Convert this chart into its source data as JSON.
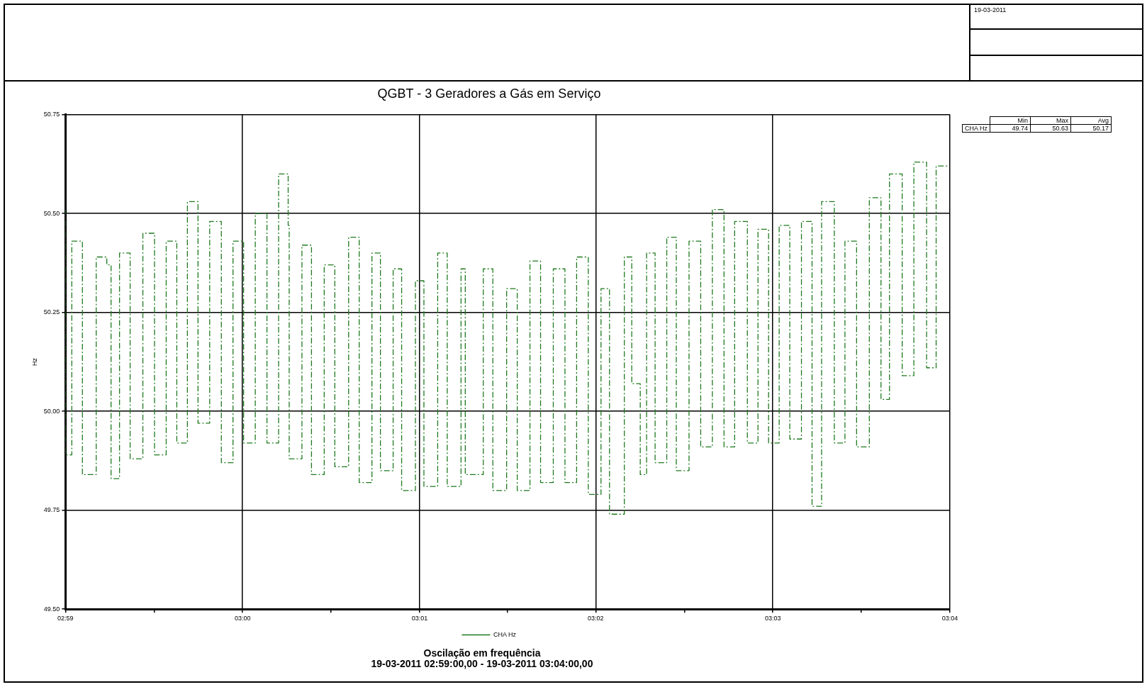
{
  "chart_data": {
    "type": "step",
    "title": "QGBT - 3 Geradores a Gás em Serviço",
    "ylabel": "Hz",
    "annotations": [
      "19-03-2011",
      "Min",
      "Max",
      "Avg",
      "CHA Hz",
      "49.74",
      "50.63",
      "50.17",
      "Oscilação em frequência",
      "19-03-2011 02:59:00,00 - 19-03-2011 03:04:00,00"
    ],
    "x": [
      2.9833,
      2.9839,
      2.9849,
      2.9862,
      2.9872,
      2.9876,
      2.9884,
      2.9894,
      2.9906,
      2.9917,
      2.9928,
      2.9938,
      2.9948,
      2.9958,
      2.9969,
      2.998,
      2.9991,
      3.0001,
      3.0012,
      3.0023,
      3.0034,
      3.0043,
      3.0044,
      3.0056,
      3.0065,
      3.0077,
      3.0087,
      3.01,
      3.011,
      3.0122,
      3.013,
      3.0142,
      3.015,
      3.0163,
      3.0171,
      3.0184,
      3.0193,
      3.0206,
      3.021,
      3.0227,
      3.0236,
      3.0249,
      3.0259,
      3.0271,
      3.0281,
      3.0293,
      3.0304,
      3.0315,
      3.0326,
      3.0338,
      3.0346,
      3.036,
      3.0367,
      3.0375,
      3.0381,
      3.0389,
      3.04,
      3.0409,
      3.0421,
      3.0432,
      3.0443,
      3.0454,
      3.0464,
      3.0476,
      3.0486,
      3.0496,
      3.0506,
      3.0516,
      3.0527,
      3.0537,
      3.0546,
      3.0558,
      3.0568,
      3.0579,
      3.0591,
      3.0602,
      3.061,
      3.0622,
      3.0633,
      3.0645,
      3.0654,
      3.0666
    ],
    "series": [
      {
        "name": "CHA Hz",
        "color": "#1f7a1f",
        "values": [
          50.51,
          49.89,
          50.43,
          49.84,
          50.39,
          50.37,
          49.83,
          50.4,
          49.88,
          50.45,
          49.89,
          50.43,
          49.92,
          50.53,
          49.97,
          50.48,
          49.87,
          50.43,
          49.92,
          50.5,
          49.92,
          50.6,
          50.47,
          49.88,
          50.42,
          49.84,
          50.37,
          49.86,
          50.44,
          49.82,
          50.4,
          49.85,
          50.36,
          49.8,
          50.33,
          49.81,
          50.4,
          49.81,
          50.36,
          49.84,
          50.36,
          49.8,
          50.31,
          49.8,
          50.38,
          49.82,
          50.36,
          49.82,
          50.39,
          49.79,
          50.31,
          49.74,
          50.39,
          50.07,
          49.84,
          50.4,
          49.87,
          50.44,
          49.85,
          50.43,
          49.91,
          50.51,
          49.91,
          50.48,
          49.92,
          50.46,
          49.92,
          50.47,
          49.93,
          50.48,
          49.76,
          50.53,
          49.92,
          50.43,
          49.91,
          50.54,
          50.03,
          50.6,
          50.09,
          50.63,
          50.11,
          50.62
        ]
      }
    ],
    "xlim": [
      2.9833,
      3.0667
    ],
    "xticks": [
      {
        "value": 2.9833,
        "label": "02:59"
      },
      {
        "value": 2.9917,
        "label": null
      },
      {
        "value": 3.0,
        "label": "03:00"
      },
      {
        "value": 3.0083,
        "label": null
      },
      {
        "value": 3.0167,
        "label": "03:01"
      },
      {
        "value": 3.025,
        "label": null
      },
      {
        "value": 3.0333,
        "label": "03:02"
      },
      {
        "value": 3.0417,
        "label": null
      },
      {
        "value": 3.05,
        "label": "03:03"
      },
      {
        "value": 3.0583,
        "label": null
      },
      {
        "value": 3.0667,
        "label": "03:04"
      }
    ],
    "ylim": [
      49.5,
      50.75
    ],
    "yticks": [
      {
        "value": 49.5,
        "label": "49.50"
      },
      49.75,
      {
        "value": 50.0,
        "label": "50.00"
      },
      50.25,
      {
        "value": 50.5,
        "label": "50.50"
      },
      50.75
    ],
    "grid": true,
    "legend": "bottom",
    "marker": "none",
    "line_style": "dashed"
  }
}
